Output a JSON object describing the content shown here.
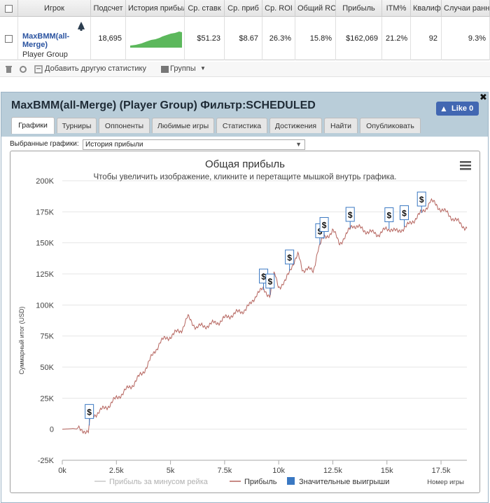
{
  "table": {
    "columns": [
      "Игрок",
      "Подсчет",
      "История прибыл",
      "Ср. ставк",
      "Ср. приб",
      "Ср. ROI",
      "Общий RC",
      "Прибыль",
      "ITM%",
      "Квалиф",
      "Случаи ранн"
    ],
    "row": {
      "player_name_line1": "MaxBMM(all-",
      "player_name_line2": "Merge)",
      "player_group": "Player Group",
      "count": "18,695",
      "avg_stake": "$51.23",
      "avg_profit": "$8.67",
      "avg_roi": "26.3%",
      "total_roi": "15.8%",
      "profit": "$162,069",
      "itm": "21.2%",
      "qualified": "92",
      "early_cases": "9.3%"
    }
  },
  "toolbar": {
    "add_stats_label": "Добавить другую статистику",
    "groups_label": "Группы"
  },
  "panel": {
    "title": "MaxBMM(all-Merge) (Player Group) Фильтр:SCHEDULED",
    "like_label": "Like 0",
    "close_label": "✖",
    "tabs": [
      "Графики",
      "Турниры",
      "Оппоненты",
      "Любимые игры",
      "Статистика",
      "Достижения",
      "Найти",
      "Опубликовать"
    ],
    "active_tab": "Графики",
    "selected_charts_label": "Выбранные графики:",
    "selected_chart_value": "История прибыли"
  },
  "chart_data": {
    "type": "line",
    "title": "Общая прибыль",
    "subtitle": "Чтобы увеличить изображение, кликните и перетащите мышкой внутрь графика.",
    "xlabel": "Номер игры",
    "ylabel": "Суммарный итог (USD)",
    "xlim": [
      0,
      18695
    ],
    "ylim": [
      -25000,
      200000
    ],
    "x_ticks": [
      "0k",
      "2.5k",
      "5k",
      "7.5k",
      "10k",
      "12.5k",
      "15k",
      "17.5k"
    ],
    "y_ticks": [
      "-25K",
      "0",
      "25K",
      "50K",
      "75K",
      "100K",
      "125K",
      "150K",
      "175K",
      "200K"
    ],
    "legend": [
      "Прибыль за минусом рейка",
      "Прибыль",
      "Значительные выигрыши"
    ],
    "legend_position": "bottom",
    "colors": {
      "profit": "#b5645e",
      "rakeback": "#c8c8c8",
      "big_wins": "#3a78c2"
    },
    "series": [
      {
        "name": "Прибыль",
        "x": [
          0,
          500,
          1000,
          1200,
          1300,
          1500,
          1800,
          2200,
          2700,
          3200,
          3700,
          4200,
          4500,
          5000,
          5500,
          5800,
          6200,
          6800,
          7300,
          7800,
          8300,
          8700,
          9000,
          9300,
          9600,
          9800,
          10000,
          10300,
          10600,
          10900,
          11100,
          11300,
          11600,
          11800,
          12000,
          12200,
          12500,
          12800,
          13100,
          13400,
          13700,
          14000,
          14300,
          14600,
          14900,
          15200,
          15500,
          15800,
          16100,
          16400,
          16700,
          17000,
          17300,
          17600,
          17900,
          18200,
          18400,
          18695
        ],
        "y": [
          0,
          500,
          -500,
          -3000,
          9000,
          12000,
          15000,
          20000,
          28000,
          35000,
          45000,
          60000,
          70000,
          75000,
          80000,
          90000,
          82000,
          84000,
          87000,
          92000,
          95000,
          100000,
          110000,
          112000,
          108000,
          125000,
          115000,
          118000,
          132000,
          140000,
          128000,
          130000,
          126000,
          145000,
          152000,
          155000,
          160000,
          150000,
          155000,
          165000,
          162000,
          160000,
          158000,
          157000,
          160000,
          162000,
          158000,
          163000,
          165000,
          172000,
          175000,
          184000,
          180000,
          176000,
          172000,
          168000,
          165000,
          162069
        ]
      }
    ],
    "big_wins_x": [
      1250,
      9300,
      9600,
      10500,
      11900,
      12100,
      13300,
      15100,
      15800,
      16600
    ]
  }
}
